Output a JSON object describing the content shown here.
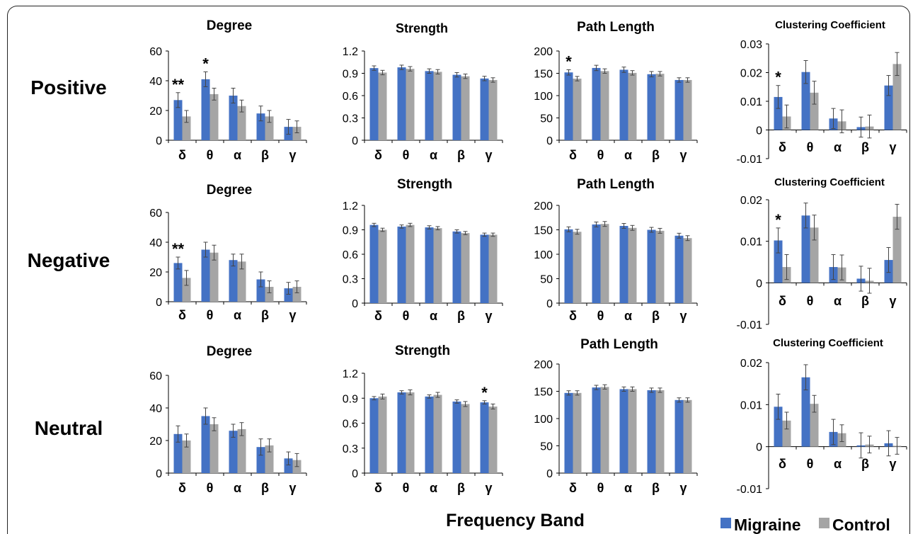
{
  "figure": {
    "row_labels": [
      "Positive",
      "Negative",
      "Neutral"
    ],
    "xlabel": "Frequency Band",
    "legend": [
      {
        "name": "Migraine",
        "color": "#4472C4"
      },
      {
        "name": "Control",
        "color": "#A5A5A5"
      }
    ],
    "colors": {
      "migraine": "#4472C4",
      "control": "#A5A5A5",
      "axis": "#000000"
    }
  },
  "chart_data": [
    {
      "type": "bar",
      "row": "Positive",
      "title": "Degree",
      "categories": [
        "δ",
        "θ",
        "α",
        "β",
        "γ"
      ],
      "ylim": [
        0,
        60
      ],
      "yticks": [
        "0",
        "20",
        "40",
        "60"
      ],
      "series": [
        {
          "name": "Migraine",
          "values": [
            27,
            41,
            30,
            18,
            9
          ],
          "errors": [
            5,
            5,
            5,
            5,
            5
          ]
        },
        {
          "name": "Control",
          "values": [
            16,
            31,
            23,
            16,
            9
          ],
          "errors": [
            4,
            4,
            4,
            4,
            4
          ]
        }
      ],
      "annotations": [
        "**",
        "*",
        "",
        "",
        ""
      ]
    },
    {
      "type": "bar",
      "row": "Positive",
      "title": "Strength",
      "categories": [
        "δ",
        "θ",
        "α",
        "β",
        "γ"
      ],
      "ylim": [
        0,
        1.2
      ],
      "yticks": [
        "0",
        "0.3",
        "0.6",
        "0.9",
        "1.2"
      ],
      "series": [
        {
          "name": "Migraine",
          "values": [
            0.97,
            0.98,
            0.93,
            0.88,
            0.83
          ],
          "errors": [
            0.03,
            0.03,
            0.03,
            0.03,
            0.03
          ]
        },
        {
          "name": "Control",
          "values": [
            0.91,
            0.96,
            0.92,
            0.86,
            0.81
          ],
          "errors": [
            0.03,
            0.03,
            0.03,
            0.03,
            0.03
          ]
        }
      ],
      "annotations": [
        "",
        "",
        "",
        "",
        ""
      ]
    },
    {
      "type": "bar",
      "row": "Positive",
      "title": "Path Length",
      "categories": [
        "δ",
        "θ",
        "α",
        "β",
        "γ"
      ],
      "ylim": [
        0,
        200
      ],
      "yticks": [
        "0",
        "50",
        "100",
        "150",
        "200"
      ],
      "series": [
        {
          "name": "Migraine",
          "values": [
            152,
            162,
            158,
            148,
            135
          ],
          "errors": [
            6,
            6,
            6,
            6,
            5
          ]
        },
        {
          "name": "Control",
          "values": [
            138,
            155,
            151,
            149,
            135
          ],
          "errors": [
            5,
            5,
            5,
            5,
            5
          ]
        }
      ],
      "annotations": [
        "*",
        "",
        "",
        "",
        ""
      ]
    },
    {
      "type": "bar",
      "row": "Positive",
      "title": "Clustering Coefficient",
      "categories": [
        "δ",
        "θ",
        "α",
        "β",
        "γ"
      ],
      "ylim": [
        -0.01,
        0.03
      ],
      "yticks": [
        "-0.01",
        "0",
        "0.01",
        "0.02",
        "0.03"
      ],
      "series": [
        {
          "name": "Migraine",
          "values": [
            0.0115,
            0.0202,
            0.004,
            0.001,
            0.0155
          ],
          "errors": [
            0.004,
            0.004,
            0.0035,
            0.0035,
            0.0035
          ]
        },
        {
          "name": "Control",
          "values": [
            0.0047,
            0.013,
            0.003,
            0.0012,
            0.023
          ],
          "errors": [
            0.004,
            0.004,
            0.004,
            0.004,
            0.004
          ]
        }
      ],
      "annotations": [
        "*",
        "",
        "",
        "",
        ""
      ]
    },
    {
      "type": "bar",
      "row": "Negative",
      "title": "Degree",
      "categories": [
        "δ",
        "θ",
        "α",
        "β",
        "γ"
      ],
      "ylim": [
        0,
        60
      ],
      "yticks": [
        "0",
        "20",
        "40",
        "60"
      ],
      "series": [
        {
          "name": "Migraine",
          "values": [
            26,
            35,
            28,
            15,
            9
          ],
          "errors": [
            4,
            5,
            4,
            5,
            4
          ]
        },
        {
          "name": "Control",
          "values": [
            16,
            33,
            27,
            10,
            10
          ],
          "errors": [
            5,
            5,
            5,
            4,
            4
          ]
        }
      ],
      "annotations": [
        "**",
        "",
        "",
        "",
        ""
      ]
    },
    {
      "type": "bar",
      "row": "Negative",
      "title": "Strength",
      "categories": [
        "δ",
        "θ",
        "α",
        "β",
        "γ"
      ],
      "ylim": [
        0,
        1.2
      ],
      "yticks": [
        "0",
        "0.3",
        "0.6",
        "0.9",
        "1.2"
      ],
      "series": [
        {
          "name": "Migraine",
          "values": [
            0.96,
            0.94,
            0.93,
            0.88,
            0.84
          ],
          "errors": [
            0.02,
            0.02,
            0.02,
            0.02,
            0.02
          ]
        },
        {
          "name": "Control",
          "values": [
            0.9,
            0.96,
            0.92,
            0.86,
            0.84
          ],
          "errors": [
            0.02,
            0.02,
            0.02,
            0.02,
            0.02
          ]
        }
      ],
      "annotations": [
        "",
        "",
        "",
        "",
        ""
      ]
    },
    {
      "type": "bar",
      "row": "Negative",
      "title": "Path Length",
      "categories": [
        "δ",
        "θ",
        "α",
        "β",
        "γ"
      ],
      "ylim": [
        0,
        200
      ],
      "yticks": [
        "0",
        "50",
        "100",
        "150",
        "200"
      ],
      "series": [
        {
          "name": "Migraine",
          "values": [
            151,
            161,
            158,
            150,
            138
          ],
          "errors": [
            5,
            5,
            5,
            5,
            5
          ]
        },
        {
          "name": "Control",
          "values": [
            146,
            162,
            154,
            148,
            133
          ],
          "errors": [
            5,
            5,
            5,
            5,
            5
          ]
        }
      ],
      "annotations": [
        "",
        "",
        "",
        "",
        ""
      ]
    },
    {
      "type": "bar",
      "row": "Negative",
      "title": "Clustering Coefficient",
      "categories": [
        "δ",
        "θ",
        "α",
        "β",
        "γ"
      ],
      "ylim": [
        -0.01,
        0.02
      ],
      "yticks": [
        "-0.01",
        "0",
        "0.01",
        "0.02"
      ],
      "series": [
        {
          "name": "Migraine",
          "values": [
            0.0102,
            0.0162,
            0.0038,
            0.001,
            0.0055
          ],
          "errors": [
            0.003,
            0.003,
            0.003,
            0.003,
            0.003
          ]
        },
        {
          "name": "Control",
          "values": [
            0.0038,
            0.0133,
            0.0037,
            0.0005,
            0.0159
          ],
          "errors": [
            0.003,
            0.003,
            0.003,
            0.003,
            0.003
          ]
        }
      ],
      "annotations": [
        "*",
        "",
        "",
        "",
        ""
      ]
    },
    {
      "type": "bar",
      "row": "Neutral",
      "title": "Degree",
      "categories": [
        "δ",
        "θ",
        "α",
        "β",
        "γ"
      ],
      "ylim": [
        0,
        60
      ],
      "yticks": [
        "0",
        "20",
        "40",
        "60"
      ],
      "series": [
        {
          "name": "Migraine",
          "values": [
            24,
            35,
            26,
            16,
            9
          ],
          "errors": [
            5,
            5,
            4,
            5,
            4
          ]
        },
        {
          "name": "Control",
          "values": [
            20,
            30,
            27,
            17,
            8
          ],
          "errors": [
            4,
            4,
            4,
            4,
            4
          ]
        }
      ],
      "annotations": [
        "",
        "",
        "",
        "",
        ""
      ]
    },
    {
      "type": "bar",
      "row": "Neutral",
      "title": "Strength",
      "categories": [
        "δ",
        "θ",
        "α",
        "β",
        "γ"
      ],
      "ylim": [
        0,
        1.2
      ],
      "yticks": [
        "0",
        "0.3",
        "0.6",
        "0.9",
        "1.2"
      ],
      "series": [
        {
          "name": "Migraine",
          "values": [
            0.9,
            0.97,
            0.92,
            0.86,
            0.85
          ],
          "errors": [
            0.02,
            0.02,
            0.02,
            0.02,
            0.02
          ]
        },
        {
          "name": "Control",
          "values": [
            0.92,
            0.97,
            0.94,
            0.83,
            0.8
          ],
          "errors": [
            0.03,
            0.03,
            0.03,
            0.03,
            0.03
          ]
        }
      ],
      "annotations": [
        "",
        "",
        "",
        "",
        "*"
      ]
    },
    {
      "type": "bar",
      "row": "Neutral",
      "title": "Path Length",
      "categories": [
        "δ",
        "θ",
        "α",
        "β",
        "γ"
      ],
      "ylim": [
        0,
        200
      ],
      "yticks": [
        "0",
        "50",
        "100",
        "150",
        "200"
      ],
      "series": [
        {
          "name": "Migraine",
          "values": [
            147,
            157,
            154,
            152,
            134
          ],
          "errors": [
            4,
            4,
            4,
            4,
            4
          ]
        },
        {
          "name": "Control",
          "values": [
            147,
            158,
            154,
            152,
            134
          ],
          "errors": [
            4,
            4,
            4,
            4,
            4
          ]
        }
      ],
      "annotations": [
        "",
        "",
        "",
        "",
        ""
      ]
    },
    {
      "type": "bar",
      "row": "Neutral",
      "title": "Clustering Coefficient",
      "categories": [
        "δ",
        "θ",
        "α",
        "β",
        "γ"
      ],
      "ylim": [
        -0.01,
        0.02
      ],
      "yticks": [
        "-0.01",
        "0",
        "0.01",
        "0.02"
      ],
      "series": [
        {
          "name": "Migraine",
          "values": [
            0.0095,
            0.0165,
            0.0035,
            0.0003,
            0.0008
          ],
          "errors": [
            0.003,
            0.003,
            0.003,
            0.003,
            0.003
          ]
        },
        {
          "name": "Control",
          "values": [
            0.0062,
            0.0102,
            0.0032,
            0.0005,
            0.0002
          ],
          "errors": [
            0.002,
            0.002,
            0.002,
            0.002,
            0.002
          ]
        }
      ],
      "annotations": [
        "",
        "",
        "",
        "",
        ""
      ]
    }
  ]
}
